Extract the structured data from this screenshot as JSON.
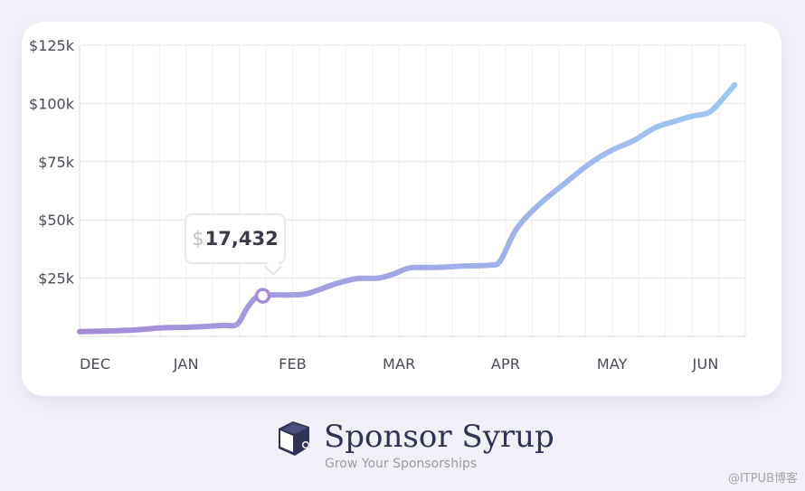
{
  "chart_data": {
    "type": "line",
    "title": "",
    "xlabel": "",
    "ylabel": "",
    "x_tick_labels": [
      "DEC",
      "JAN",
      "FEB",
      "MAR",
      "APR",
      "MAY",
      "JUN"
    ],
    "y_tick_labels": [
      "$25k",
      "$50k",
      "$75k",
      "$100k",
      "$125k"
    ],
    "y_ticks": [
      25000,
      50000,
      75000,
      100000,
      125000
    ],
    "ylim": [
      0,
      125000
    ],
    "grid": true,
    "series": [
      {
        "values": [
          [
            0.0,
            2000
          ],
          [
            0.25,
            2300
          ],
          [
            0.5,
            2700
          ],
          [
            0.75,
            3600
          ],
          [
            1.0,
            3900
          ],
          [
            1.15,
            4200
          ],
          [
            1.35,
            4700
          ],
          [
            1.48,
            5200
          ],
          [
            1.57,
            12000
          ],
          [
            1.65,
            16500
          ],
          [
            1.72,
            17432
          ],
          [
            1.8,
            17800
          ],
          [
            2.0,
            17800
          ],
          [
            2.15,
            18500
          ],
          [
            2.4,
            22500
          ],
          [
            2.6,
            24800
          ],
          [
            2.8,
            25000
          ],
          [
            2.95,
            26800
          ],
          [
            3.1,
            29400
          ],
          [
            3.35,
            29600
          ],
          [
            3.6,
            30200
          ],
          [
            3.85,
            30600
          ],
          [
            3.95,
            32500
          ],
          [
            4.1,
            46000
          ],
          [
            4.3,
            56000
          ],
          [
            4.55,
            65500
          ],
          [
            4.8,
            74500
          ],
          [
            5.0,
            80000
          ],
          [
            5.2,
            84000
          ],
          [
            5.4,
            89500
          ],
          [
            5.6,
            92500
          ],
          [
            5.75,
            94500
          ],
          [
            5.9,
            96000
          ],
          [
            6.0,
            100000
          ],
          [
            6.15,
            108000
          ]
        ],
        "color_start": "#a48ad8",
        "color_end": "#9cc8f4"
      }
    ],
    "highlight": {
      "x": 1.72,
      "y": 17432,
      "currency": "$",
      "label": "17,432"
    }
  },
  "brand": {
    "name": "Sponsor Syrup",
    "tagline": "Grow Your Sponsorships",
    "logo_icon": "syrup-box-icon",
    "color": "#2f3356"
  },
  "watermark": "@ITPUB博客"
}
